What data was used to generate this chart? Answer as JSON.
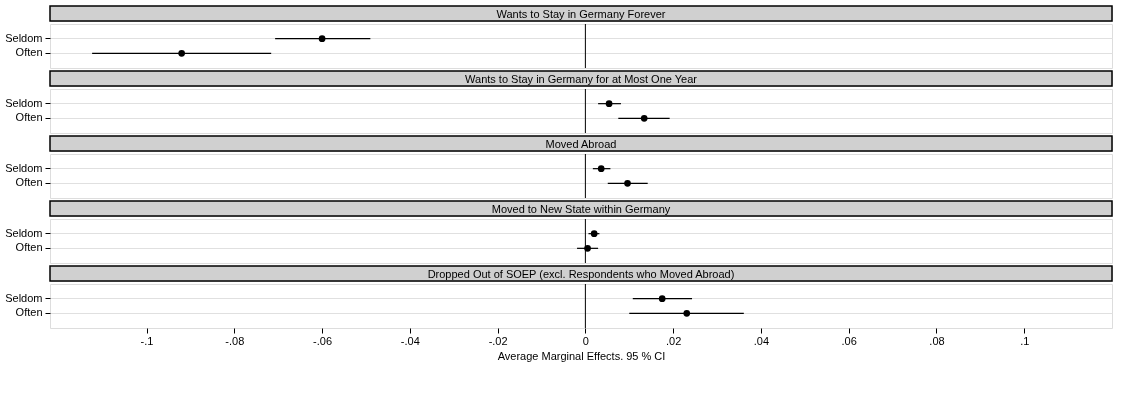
{
  "chart_data": [
    {
      "type": "scatter",
      "title": "Wants to Stay in Germany Forever",
      "orientation": "horizontal",
      "categories": [
        "Seldom",
        "Often"
      ],
      "series": [
        {
          "color": "#000000",
          "values": [
            -0.06,
            -0.092
          ],
          "errors": [
            [
              -0.0707,
              -0.049
            ],
            [
              -0.1124,
              -0.0716
            ]
          ]
        }
      ],
      "xlim": [
        -0.122,
        0.12
      ],
      "marker": "circle",
      "grid": "y",
      "tick_labels": "y",
      "ref_lines": [
        {
          "axis": "x",
          "value": 0
        }
      ]
    },
    {
      "type": "scatter",
      "title": "Wants to Stay in Germany for at Most One Year",
      "orientation": "horizontal",
      "categories": [
        "Seldom",
        "Often"
      ],
      "series": [
        {
          "color": "#000000",
          "values": [
            0.0054,
            0.0134
          ],
          "errors": [
            [
              0.0029,
              0.0081
            ],
            [
              0.0075,
              0.0192
            ]
          ]
        }
      ],
      "xlim": [
        -0.122,
        0.12
      ],
      "marker": "circle",
      "grid": "y",
      "tick_labels": "y",
      "ref_lines": [
        {
          "axis": "x",
          "value": 0
        }
      ]
    },
    {
      "type": "scatter",
      "title": "Moved Abroad",
      "orientation": "horizontal",
      "categories": [
        "Seldom",
        "Often"
      ],
      "series": [
        {
          "color": "#000000",
          "values": [
            0.0036,
            0.0096
          ],
          "errors": [
            [
              0.0017,
              0.0057
            ],
            [
              0.0051,
              0.0142
            ]
          ]
        }
      ],
      "xlim": [
        -0.122,
        0.12
      ],
      "marker": "circle",
      "grid": "y",
      "tick_labels": "y",
      "ref_lines": [
        {
          "axis": "x",
          "value": 0
        }
      ]
    },
    {
      "type": "scatter",
      "title": "Moved to New State within Germany",
      "orientation": "horizontal",
      "categories": [
        "Seldom",
        "Often"
      ],
      "series": [
        {
          "color": "#000000",
          "values": [
            0.002,
            0.0005
          ],
          "errors": [
            [
              0.0007,
              0.0032
            ],
            [
              -0.0019,
              0.0029
            ]
          ]
        }
      ],
      "xlim": [
        -0.122,
        0.12
      ],
      "marker": "circle",
      "grid": "y",
      "tick_labels": "y",
      "ref_lines": [
        {
          "axis": "x",
          "value": 0
        }
      ]
    },
    {
      "type": "scatter",
      "title": "Dropped Out of SOEP (excl. Respondents who Moved Abroad)",
      "orientation": "horizontal",
      "categories": [
        "Seldom",
        "Often"
      ],
      "series": [
        {
          "color": "#000000",
          "values": [
            0.0175,
            0.0231
          ],
          "errors": [
            [
              0.0108,
              0.0243
            ],
            [
              0.01,
              0.0361
            ]
          ]
        }
      ],
      "xlim": [
        -0.122,
        0.12
      ],
      "xticks": [
        {
          "value": -0.1,
          "label": "-.1"
        },
        {
          "value": -0.08,
          "label": "-.08"
        },
        {
          "value": -0.06,
          "label": "-.06"
        },
        {
          "value": -0.04,
          "label": "-.04"
        },
        {
          "value": -0.02,
          "label": "-.02"
        },
        0,
        {
          "value": 0.02,
          "label": ".02"
        },
        {
          "value": 0.04,
          "label": ".04"
        },
        {
          "value": 0.06,
          "label": ".06"
        },
        {
          "value": 0.08,
          "label": ".08"
        },
        {
          "value": 0.1,
          "label": ".1"
        }
      ],
      "xlabel": "Average Marginal Effects. 95 % CI",
      "marker": "circle",
      "grid": "y",
      "ref_lines": [
        {
          "axis": "x",
          "value": 0
        }
      ]
    }
  ]
}
